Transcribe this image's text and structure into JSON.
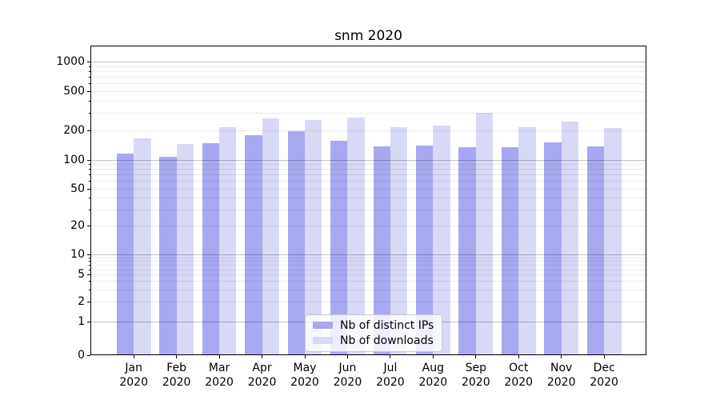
{
  "chart_data": {
    "type": "bar",
    "title": "snm 2020",
    "categories": [
      "Jan\n2020",
      "Feb\n2020",
      "Mar\n2020",
      "Apr\n2020",
      "May\n2020",
      "Jun\n2020",
      "Jul\n2020",
      "Aug\n2020",
      "Sep\n2020",
      "Oct\n2020",
      "Nov\n2020",
      "Dec\n2020"
    ],
    "series": [
      {
        "name": "Nb of distinct IPs",
        "color": "#a8a8f0",
        "values": [
          116,
          108,
          148,
          178,
          195,
          158,
          137,
          141,
          134,
          136,
          152,
          137
        ]
      },
      {
        "name": "Nb of downloads",
        "color": "#d8d8f7",
        "values": [
          166,
          145,
          214,
          263,
          255,
          271,
          217,
          222,
          303,
          214,
          247,
          211
        ]
      }
    ],
    "xlabel": "",
    "ylabel": "",
    "yscale": "log",
    "yticks": [
      1000,
      500,
      200,
      100,
      50,
      20,
      10,
      5,
      2,
      1,
      0
    ],
    "ylim": [
      0,
      1450
    ],
    "grid": true,
    "legend_position": "lower center",
    "axis_color": "#000000",
    "grid_major_color": "rgba(0,0,0,0.24)",
    "grid_minor_color": "rgba(0,0,0,0.08)"
  }
}
